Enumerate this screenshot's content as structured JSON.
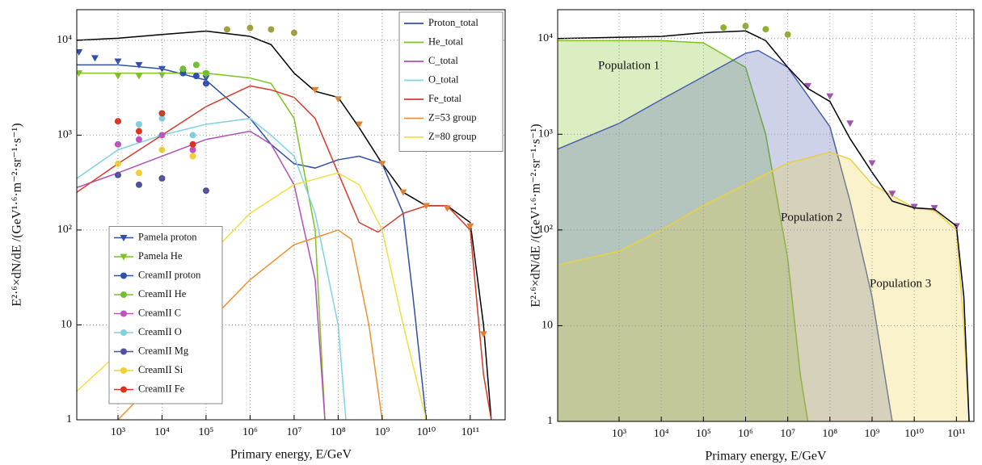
{
  "chart_data": [
    {
      "type": "line",
      "xlabel": "Primary energy, E/GeV",
      "ylabel": "E²·⁶×dN/dE /(GeV¹·⁶·m⁻²·sr⁻¹·s⁻¹)",
      "xscale": "log",
      "yscale": "log",
      "grid": true,
      "legend": "upper right",
      "marker_legend": "lower left",
      "xlim": [
        116,
        620000000000
      ],
      "ylim": [
        1,
        21000
      ],
      "xticks": [
        {
          "value": 1000,
          "label": "10³"
        },
        {
          "value": 10000,
          "label": "10⁴"
        },
        {
          "value": 100000,
          "label": "10⁵"
        },
        {
          "value": 1000000,
          "label": "10⁶"
        },
        {
          "value": 10000000,
          "label": "10⁷"
        },
        {
          "value": 100000000,
          "label": "10⁸"
        },
        {
          "value": 1000000000,
          "label": "10⁹"
        },
        {
          "value": 10000000000,
          "label": "10¹⁰"
        },
        {
          "value": 100000000000,
          "label": "10¹¹"
        }
      ],
      "yticks": [
        1,
        10,
        {
          "value": 100,
          "label": "10²"
        },
        {
          "value": 1000,
          "label": "10³"
        },
        {
          "value": 10000,
          "label": "10⁴"
        }
      ],
      "series": [
        {
          "type": "line",
          "color": "#000000",
          "x": [
            116,
            1000,
            10000,
            100000,
            1000000,
            3000000,
            10000000,
            30000000,
            100000000,
            300000000,
            1000000000,
            3000000000,
            10000000000,
            30000000000,
            100000000000,
            200000000000,
            300000000000
          ],
          "values": [
            10000,
            10500,
            11500,
            12500,
            11000,
            9000,
            4500,
            2900,
            2500,
            1200,
            500,
            250,
            180,
            180,
            120,
            10,
            1
          ]
        },
        {
          "type": "line",
          "name": "Proton_total",
          "color": "#2f4fa8",
          "x": [
            116,
            1000,
            10000,
            100000,
            1000000,
            3000000,
            10000000,
            30000000,
            100000000,
            300000000,
            1000000000,
            3000000000,
            5000000000,
            10000000000
          ],
          "values": [
            5500,
            5500,
            5000,
            3800,
            1500,
            800,
            500,
            450,
            550,
            600,
            500,
            150,
            20,
            1
          ]
        },
        {
          "type": "line",
          "name": "He_total",
          "color": "#7cc323",
          "x": [
            116,
            10000,
            100000,
            1000000,
            3000000,
            10000000,
            30000000,
            50000000
          ],
          "values": [
            4500,
            4500,
            4500,
            4000,
            3500,
            1500,
            100,
            1
          ]
        },
        {
          "type": "line",
          "name": "C_total",
          "color": "#b04fb8",
          "x": [
            116,
            1000,
            10000,
            100000,
            1000000,
            3000000,
            10000000,
            30000000,
            50000000
          ],
          "values": [
            280,
            400,
            600,
            900,
            1100,
            800,
            300,
            30,
            1
          ]
        },
        {
          "type": "line",
          "name": "O_total",
          "color": "#7fd3e0",
          "x": [
            116,
            1000,
            10000,
            100000,
            1000000,
            3000000,
            10000000,
            30000000,
            100000000,
            150000000
          ],
          "values": [
            350,
            700,
            1000,
            1300,
            1500,
            1000,
            600,
            150,
            10,
            1
          ]
        },
        {
          "type": "line",
          "name": "Fe_total",
          "color": "#d83a2a",
          "x": [
            116,
            1000,
            10000,
            100000,
            1000000,
            3000000,
            10000000,
            30000000,
            100000000,
            300000000,
            800000000,
            3000000000,
            10000000000,
            30000000000,
            100000000000,
            200000000000,
            300000000000
          ],
          "values": [
            250,
            500,
            1000,
            2000,
            3300,
            3000,
            2500,
            1500,
            400,
            120,
            95,
            150,
            180,
            180,
            100,
            3,
            1
          ]
        },
        {
          "type": "line",
          "name": "Z=53 group",
          "color": "#f0902a",
          "x": [
            1000,
            10000,
            100000,
            1000000,
            10000000,
            100000000,
            200000000,
            500000000,
            1000000000
          ],
          "values": [
            1,
            3,
            10,
            30,
            70,
            100,
            80,
            10,
            1
          ]
        },
        {
          "type": "line",
          "name": "Z=80 group",
          "color": "#f0e040",
          "x": [
            116,
            1000,
            10000,
            100000,
            1000000,
            10000000,
            100000000,
            300000000,
            1000000000,
            3000000000,
            10000000000
          ],
          "values": [
            2,
            5,
            15,
            50,
            150,
            300,
            400,
            300,
            100,
            10,
            1
          ]
        },
        {
          "type": "scatter",
          "name": "Pamela proton",
          "marker": "triangle-down",
          "color": "#2f4fa8",
          "x": [
            130,
            300,
            1000,
            3000,
            10000,
            30000,
            100000
          ],
          "values": [
            7500,
            6500,
            6000,
            5500,
            5000,
            4600,
            4000
          ]
        },
        {
          "type": "scatter",
          "name": "Pamela He",
          "marker": "triangle-down",
          "color": "#7cc323",
          "x": [
            130,
            1000,
            3000,
            10000,
            100000
          ],
          "values": [
            4500,
            4200,
            4200,
            4300,
            4400
          ]
        },
        {
          "type": "scatter",
          "name": "CreamII proton",
          "marker": "circle",
          "color": "#3050b0",
          "x": [
            30000,
            60000,
            100000
          ],
          "values": [
            4500,
            4200,
            3500
          ]
        },
        {
          "type": "scatter",
          "name": "CreamII He",
          "marker": "circle",
          "color": "#70c030",
          "x": [
            30000,
            60000,
            100000
          ],
          "values": [
            5000,
            5500,
            4500
          ]
        },
        {
          "type": "scatter",
          "name": "CreamII C",
          "marker": "circle",
          "color": "#c050c0",
          "x": [
            1000,
            3000,
            10000,
            50000
          ],
          "values": [
            800,
            900,
            1000,
            700
          ]
        },
        {
          "type": "scatter",
          "name": "CreamII O",
          "marker": "circle",
          "color": "#80d0e0",
          "x": [
            1000,
            3000,
            10000,
            50000
          ],
          "values": [
            1400,
            1300,
            1500,
            1000
          ]
        },
        {
          "type": "scatter",
          "name": "CreamII Mg",
          "marker": "circle",
          "color": "#5050a0",
          "x": [
            1000,
            3000,
            10000,
            100000
          ],
          "values": [
            380,
            300,
            350,
            260
          ]
        },
        {
          "type": "scatter",
          "name": "CreamII Si",
          "marker": "circle",
          "color": "#f0d030",
          "x": [
            1000,
            3000,
            10000,
            50000
          ],
          "values": [
            500,
            400,
            700,
            600
          ]
        },
        {
          "type": "scatter",
          "name": "CreamII Fe",
          "marker": "circle",
          "color": "#e03020",
          "x": [
            1000,
            3000,
            10000,
            50000
          ],
          "values": [
            1400,
            1100,
            1700,
            800
          ]
        },
        {
          "type": "scatter",
          "marker": "circle",
          "color": "#a0a040",
          "x": [
            300000,
            1000000,
            3000000,
            10000000
          ],
          "values": [
            13000,
            13500,
            13000,
            12000
          ]
        },
        {
          "type": "scatter",
          "marker": "triangle-down",
          "color": "#e08030",
          "x": [
            30000000,
            100000000,
            300000000,
            1000000000,
            3000000000,
            10000000000,
            30000000000,
            100000000000,
            200000000000
          ],
          "values": [
            3000,
            2400,
            1300,
            500,
            250,
            180,
            170,
            110,
            8
          ]
        }
      ]
    },
    {
      "type": "area",
      "xlabel": "Primary energy, E/GeV",
      "ylabel": "E²·⁶×dN/dE /(GeV¹·⁶·m⁻²·sr⁻¹·s⁻¹)",
      "xscale": "log",
      "yscale": "log",
      "grid": true,
      "xlim": [
        35,
        260000000000
      ],
      "ylim": [
        1,
        20000
      ],
      "xticks": [
        {
          "value": 1000,
          "label": "10³"
        },
        {
          "value": 10000,
          "label": "10⁴"
        },
        {
          "value": 100000,
          "label": "10⁵"
        },
        {
          "value": 1000000,
          "label": "10⁶"
        },
        {
          "value": 10000000,
          "label": "10⁷"
        },
        {
          "value": 100000000,
          "label": "10⁸"
        },
        {
          "value": 1000000000,
          "label": "10⁹"
        },
        {
          "value": 10000000000,
          "label": "10¹⁰"
        },
        {
          "value": 100000000000,
          "label": "10¹¹"
        }
      ],
      "yticks": [
        1,
        10,
        {
          "value": 100,
          "label": "10²"
        },
        {
          "value": 1000,
          "label": "10³"
        },
        {
          "value": 10000,
          "label": "10⁴"
        }
      ],
      "annotations": [
        "Population 1",
        "Population 2",
        "Population 3"
      ],
      "series": [
        {
          "type": "area",
          "color": "#7cc323",
          "x": [
            35,
            10000,
            100000,
            1000000,
            3000000,
            10000000,
            20000000,
            30000000
          ],
          "values": [
            9500,
            9500,
            9000,
            5000,
            1000,
            50,
            3,
            1
          ]
        },
        {
          "type": "area",
          "color": "#4a5fb0",
          "x": [
            35,
            1000,
            10000,
            100000,
            1000000,
            2000000,
            10000000,
            100000000,
            300000000,
            1000000000,
            3000000000
          ],
          "values": [
            700,
            1300,
            2300,
            4000,
            7000,
            7500,
            5000,
            1200,
            200,
            20,
            1
          ]
        },
        {
          "type": "area",
          "color": "#e8d040",
          "x": [
            35,
            1000,
            10000,
            100000,
            1000000,
            10000000,
            100000000,
            300000000,
            1000000000,
            10000000000,
            30000000000,
            100000000000,
            150000000000,
            200000000000
          ],
          "values": [
            43,
            60,
            100,
            180,
            300,
            500,
            650,
            550,
            300,
            170,
            160,
            100,
            10,
            1
          ]
        },
        {
          "type": "line",
          "color": "#000000",
          "x": [
            35,
            10000,
            100000,
            1000000,
            3000000,
            10000000,
            30000000,
            100000000,
            300000000,
            1000000000,
            3000000000,
            10000000000,
            30000000000,
            100000000000,
            150000000000,
            200000000000
          ],
          "values": [
            10000,
            10500,
            11500,
            12000,
            9500,
            5000,
            3000,
            2200,
            900,
            400,
            200,
            170,
            165,
            110,
            20,
            1
          ]
        },
        {
          "type": "scatter",
          "marker": "circle",
          "color": "#90b030",
          "x": [
            300000,
            1000000,
            3000000,
            10000000
          ],
          "values": [
            13000,
            13500,
            12500,
            11000
          ]
        },
        {
          "type": "scatter",
          "marker": "triangle-down",
          "color": "#a050b0",
          "x": [
            30000000,
            100000000,
            300000000,
            1000000000,
            3000000000,
            10000000000,
            30000000000,
            100000000000
          ],
          "values": [
            3200,
            2500,
            1300,
            500,
            240,
            175,
            170,
            110
          ]
        }
      ]
    }
  ]
}
